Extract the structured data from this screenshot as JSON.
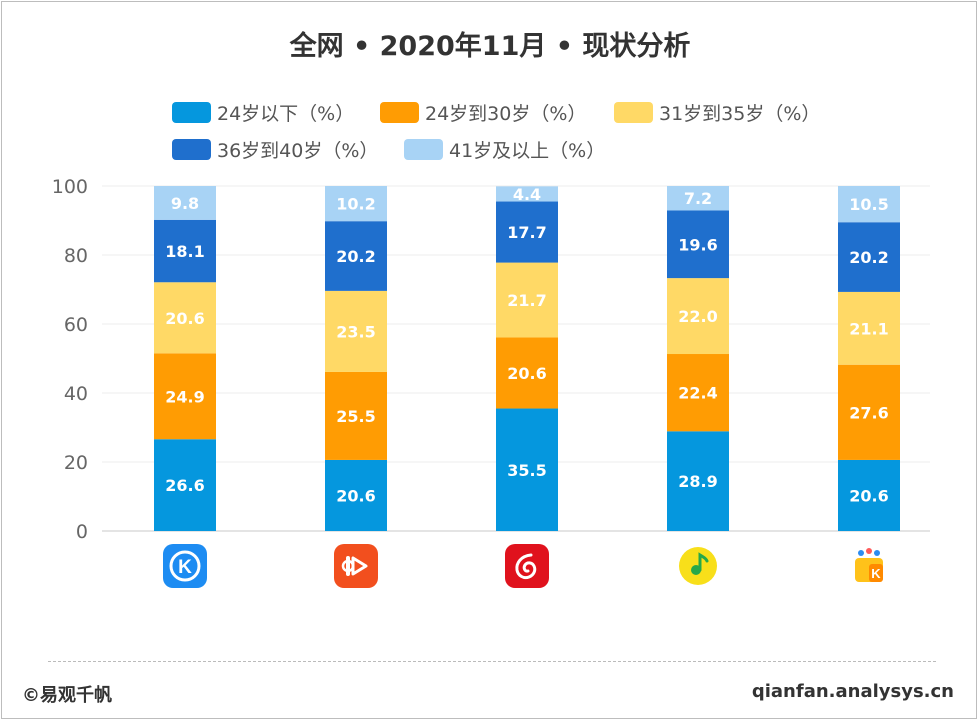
{
  "title": "全网 • 2020年11月 • 现状分析",
  "legend": [
    {
      "label": "24岁以下（%）",
      "color": "#0597de"
    },
    {
      "label": "24岁到30岁（%）",
      "color": "#ff9c03"
    },
    {
      "label": "31岁到35岁（%）",
      "color": "#ffd966"
    },
    {
      "label": "36岁到40岁（%）",
      "color": "#1f6fcd"
    },
    {
      "label": "41岁及以上（%）",
      "color": "#a8d3f5"
    }
  ],
  "chart_data": {
    "type": "bar",
    "stacked": true,
    "title": "全网 • 2020年11月 • 现状分析",
    "xlabel": "",
    "ylabel": "",
    "ylim": [
      0,
      100
    ],
    "yticks": [
      0,
      20,
      40,
      60,
      80,
      100
    ],
    "categories": [
      "kugou",
      "kuaiyin",
      "netease-music",
      "qq-music",
      "kuwo"
    ],
    "series": [
      {
        "name": "24岁以下（%）",
        "color": "#0597de",
        "values": [
          26.6,
          20.6,
          35.5,
          28.9,
          20.6
        ],
        "labels": [
          "26.6",
          "20.6",
          "35.5",
          "28.9",
          "20.6"
        ]
      },
      {
        "name": "24岁到30岁（%）",
        "color": "#ff9c03",
        "values": [
          24.9,
          25.5,
          20.6,
          22.4,
          27.6
        ],
        "labels": [
          "24.9",
          "25.5",
          "20.6",
          "22.4",
          "27.6"
        ]
      },
      {
        "name": "31岁到35岁（%）",
        "color": "#ffd966",
        "values": [
          20.6,
          23.5,
          21.7,
          22.0,
          21.1
        ],
        "labels": [
          "20.6",
          "23.5",
          "21.7",
          "22.0",
          "21.1"
        ]
      },
      {
        "name": "36岁到40岁（%）",
        "color": "#1f6fcd",
        "values": [
          18.1,
          20.2,
          17.7,
          19.6,
          20.2
        ],
        "labels": [
          "18.1",
          "20.2",
          "17.7",
          "19.6",
          "20.2"
        ]
      },
      {
        "name": "41岁及以上（%）",
        "color": "#a8d3f5",
        "values": [
          9.8,
          10.2,
          4.4,
          7.2,
          10.5
        ],
        "labels": [
          "9.8",
          "10.2",
          "4.4",
          "7.2",
          "10.5"
        ]
      }
    ]
  },
  "footer": {
    "left": "©易观千帆",
    "right": "qianfan.analysys.cn"
  }
}
